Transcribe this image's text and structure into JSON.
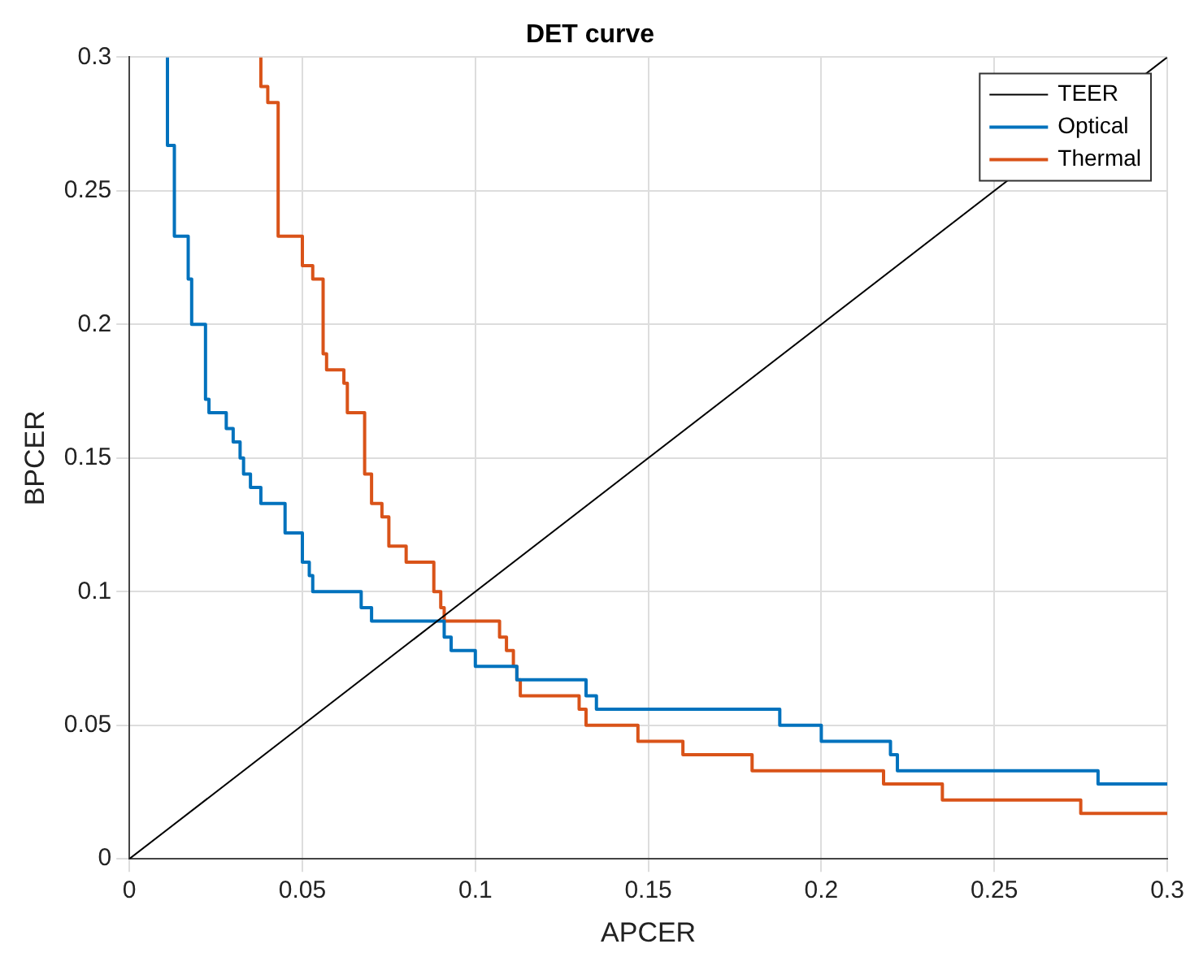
{
  "chart_data": {
    "type": "step",
    "title": "DET curve",
    "xlabel": "APCER",
    "ylabel": "BPCER",
    "xlim": [
      0,
      0.3
    ],
    "ylim": [
      0,
      0.3
    ],
    "xticks": [
      0,
      0.05,
      0.1,
      0.15,
      0.2,
      0.25,
      0.3
    ],
    "yticks": [
      0,
      0.05,
      0.1,
      0.15,
      0.2,
      0.25,
      0.3
    ],
    "grid": true,
    "legend": "top right",
    "marker": "none",
    "series": [
      {
        "name": "TEER",
        "type": "line",
        "color": "#000000",
        "x": [
          0,
          0.3
        ],
        "values": [
          0,
          0.3
        ]
      },
      {
        "name": "Optical",
        "color": "#0072bd",
        "x": [
          0.011,
          0.013,
          0.017,
          0.018,
          0.022,
          0.023,
          0.028,
          0.03,
          0.032,
          0.033,
          0.035,
          0.038,
          0.045,
          0.05,
          0.052,
          0.053,
          0.067,
          0.07,
          0.091,
          0.093,
          0.1,
          0.112,
          0.132,
          0.135,
          0.188,
          0.2,
          0.22,
          0.222,
          0.28,
          0.3
        ],
        "values": [
          0.3,
          0.267,
          0.233,
          0.217,
          0.2,
          0.172,
          0.167,
          0.161,
          0.156,
          0.15,
          0.144,
          0.139,
          0.133,
          0.122,
          0.111,
          0.106,
          0.1,
          0.094,
          0.089,
          0.083,
          0.078,
          0.072,
          0.067,
          0.061,
          0.056,
          0.05,
          0.044,
          0.039,
          0.033,
          0.028
        ]
      },
      {
        "name": "Thermal",
        "color": "#d95319",
        "x": [
          0.038,
          0.04,
          0.043,
          0.05,
          0.053,
          0.056,
          0.057,
          0.062,
          0.063,
          0.068,
          0.07,
          0.073,
          0.075,
          0.08,
          0.088,
          0.09,
          0.091,
          0.107,
          0.109,
          0.111,
          0.112,
          0.113,
          0.13,
          0.132,
          0.147,
          0.16,
          0.18,
          0.218,
          0.235,
          0.275,
          0.3
        ],
        "values": [
          0.3,
          0.289,
          0.283,
          0.233,
          0.222,
          0.217,
          0.189,
          0.183,
          0.178,
          0.167,
          0.144,
          0.133,
          0.128,
          0.117,
          0.111,
          0.1,
          0.094,
          0.089,
          0.083,
          0.078,
          0.072,
          0.067,
          0.061,
          0.056,
          0.05,
          0.044,
          0.039,
          0.033,
          0.028,
          0.022,
          0.017
        ]
      }
    ]
  }
}
